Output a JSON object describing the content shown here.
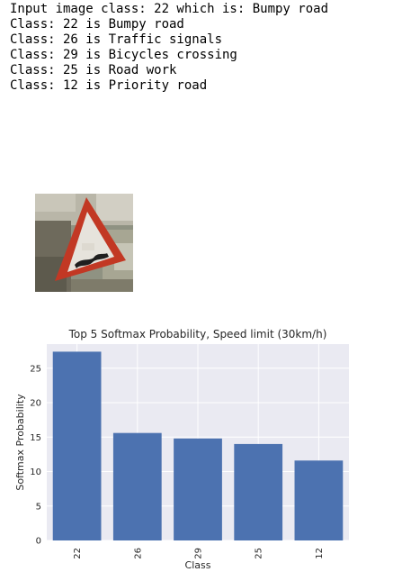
{
  "output_lines": [
    "Input image class: 22 which is: Bumpy road",
    "Class: 22 is Bumpy road",
    "Class: 26 is Traffic signals",
    "Class: 29 is Bicycles crossing",
    "Class: 25 is Road work",
    "Class: 12 is Priority road"
  ],
  "colors": {
    "bar": "#4c72b0",
    "plot_bg": "#eaeaf2",
    "grid": "#ffffff"
  },
  "chart_data": {
    "type": "bar",
    "title": "Top 5 Softmax Probability, Speed limit (30km/h)",
    "xlabel": "Class",
    "ylabel": "Softmax Probability",
    "categories": [
      "22",
      "26",
      "29",
      "25",
      "12"
    ],
    "values": [
      27.4,
      15.6,
      14.8,
      14.0,
      11.6
    ],
    "ylim": [
      0,
      28.5
    ],
    "yticks": [
      0,
      5,
      10,
      15,
      20,
      25
    ],
    "grid": true,
    "legend": "none"
  }
}
